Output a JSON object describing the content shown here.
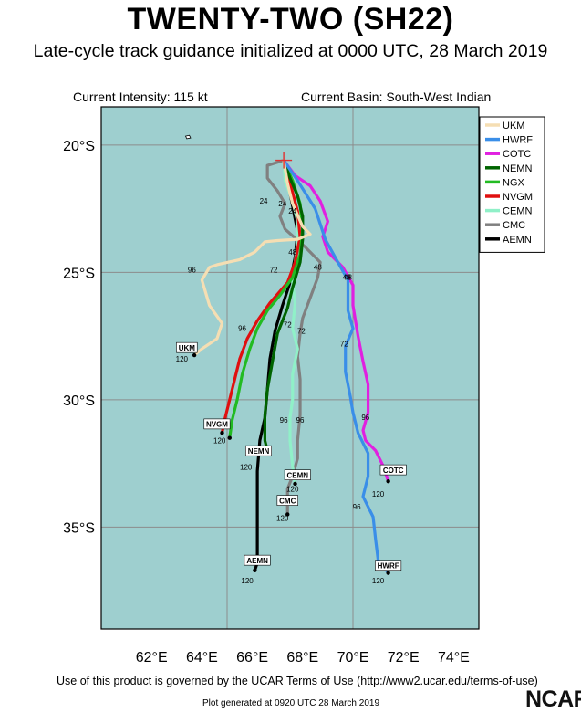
{
  "header": {
    "title": "TWENTY-TWO (SH22)",
    "subtitle": "Late-cycle track guidance initialized at 0000 UTC, 28 March 2019",
    "intensity": "Current Intensity: 115 kt",
    "basin": "Current Basin: South-West Indian"
  },
  "footer": {
    "terms": "Use of this product is governed by the UCAR Terms of Use (http://www2.ucar.edu/terms-of-use)",
    "generated": "Plot generated at 0920 UTC   28 March 2019",
    "logo_text": "NCAR"
  },
  "colors": {
    "ocean": "#9ecfcf",
    "land": "#ffffff",
    "grid": "#8c8c8c",
    "storm_marker": "#e03030"
  },
  "map": {
    "lon_range": [
      60,
      75
    ],
    "lat_range": [
      -39,
      -18.5
    ],
    "lon_ticks": [
      62,
      64,
      66,
      68,
      70,
      72,
      74
    ],
    "lon_tick_labels": [
      "62°E",
      "64°E",
      "66°E",
      "68°E",
      "70°E",
      "72°E",
      "74°E"
    ],
    "lat_ticks": [
      -20,
      -25,
      -30,
      -35
    ],
    "lat_tick_labels": [
      "20°S",
      "25°S",
      "30°S",
      "35°S"
    ],
    "grid_lons": [
      65,
      70
    ],
    "grid_lats": [
      -20,
      -25,
      -30,
      -35
    ],
    "storm_position": {
      "lon": 67.25,
      "lat": -20.6
    }
  },
  "legend": {
    "position": "top-right",
    "items": [
      {
        "name": "UKM",
        "color": "#f5deb3"
      },
      {
        "name": "HWRF",
        "color": "#3a8ee8"
      },
      {
        "name": "COTC",
        "color": "#e020e0"
      },
      {
        "name": "NEMN",
        "color": "#006400"
      },
      {
        "name": "NGX",
        "color": "#22bb22"
      },
      {
        "name": "NVGM",
        "color": "#e01010"
      },
      {
        "name": "CEMN",
        "color": "#90f0c8"
      },
      {
        "name": "CMC",
        "color": "#808080"
      },
      {
        "name": "AEMN",
        "color": "#000000"
      }
    ]
  },
  "tracks": [
    {
      "model": "UKM",
      "color": "#f5deb3",
      "end_label": "UKM",
      "points": [
        [
          67.25,
          -20.6
        ],
        [
          67.4,
          -21.5
        ],
        [
          67.6,
          -22.3
        ],
        [
          68.0,
          -23.2
        ],
        [
          68.3,
          -23.5
        ],
        [
          67.8,
          -23.7
        ],
        [
          67.0,
          -23.75
        ],
        [
          66.5,
          -23.8
        ],
        [
          66.1,
          -24.2
        ],
        [
          65.5,
          -24.5
        ],
        [
          64.6,
          -24.7
        ],
        [
          64.3,
          -24.8
        ],
        [
          64.0,
          -25.3
        ],
        [
          64.3,
          -26.3
        ],
        [
          64.8,
          -27.0
        ],
        [
          64.6,
          -27.6
        ],
        [
          64.0,
          -28.0
        ],
        [
          63.7,
          -28.25
        ]
      ],
      "hour_labels": [
        {
          "text": "96",
          "lon": 63.6,
          "lat": -25.0
        },
        {
          "text": "120",
          "lon": 63.2,
          "lat": -28.5
        }
      ],
      "box": {
        "lon": 63.4,
        "lat": -27.95
      }
    },
    {
      "model": "HWRF",
      "color": "#3a8ee8",
      "end_label": "HWRF",
      "points": [
        [
          67.25,
          -20.6
        ],
        [
          67.8,
          -21.4
        ],
        [
          68.5,
          -22.5
        ],
        [
          68.9,
          -23.7
        ],
        [
          69.4,
          -24.6
        ],
        [
          69.8,
          -25.3
        ],
        [
          69.8,
          -26.5
        ],
        [
          70.0,
          -27.2
        ],
        [
          69.7,
          -27.9
        ],
        [
          69.7,
          -28.9
        ],
        [
          69.9,
          -29.9
        ],
        [
          70.0,
          -30.5
        ],
        [
          70.2,
          -31.3
        ],
        [
          70.6,
          -32.1
        ],
        [
          70.6,
          -33.0
        ],
        [
          70.4,
          -33.8
        ],
        [
          70.8,
          -34.6
        ],
        [
          70.9,
          -35.5
        ],
        [
          71.0,
          -36.3
        ],
        [
          71.4,
          -36.8
        ]
      ],
      "hour_labels": [
        {
          "text": "48",
          "lon": 69.75,
          "lat": -25.3
        },
        {
          "text": "72",
          "lon": 69.65,
          "lat": -27.9
        },
        {
          "text": "96",
          "lon": 70.15,
          "lat": -34.3
        },
        {
          "text": "120",
          "lon": 71.0,
          "lat": -37.2
        }
      ],
      "box": {
        "lon": 71.4,
        "lat": -36.5
      }
    },
    {
      "model": "COTC",
      "color": "#e020e0",
      "end_label": "COTC",
      "points": [
        [
          67.25,
          -20.6
        ],
        [
          67.7,
          -21.2
        ],
        [
          68.3,
          -21.6
        ],
        [
          68.7,
          -22.2
        ],
        [
          69.0,
          -23.0
        ],
        [
          68.8,
          -23.6
        ],
        [
          69.0,
          -24.2
        ],
        [
          69.6,
          -24.8
        ],
        [
          70.0,
          -25.5
        ],
        [
          70.0,
          -26.3
        ],
        [
          70.2,
          -27.5
        ],
        [
          70.4,
          -28.5
        ],
        [
          70.6,
          -29.4
        ],
        [
          70.6,
          -30.5
        ],
        [
          70.4,
          -31.2
        ],
        [
          70.5,
          -31.6
        ],
        [
          70.9,
          -32.0
        ],
        [
          71.2,
          -32.6
        ],
        [
          71.4,
          -33.2
        ]
      ],
      "hour_labels": [
        {
          "text": "48",
          "lon": 69.8,
          "lat": -25.3
        },
        {
          "text": "96",
          "lon": 70.5,
          "lat": -30.8
        },
        {
          "text": "120",
          "lon": 71.0,
          "lat": -33.8
        }
      ],
      "box": {
        "lon": 71.6,
        "lat": -32.75
      }
    },
    {
      "model": "NEMN",
      "color": "#006400",
      "end_label": "NEMN",
      "points": [
        [
          67.25,
          -20.6
        ],
        [
          67.5,
          -21.3
        ],
        [
          67.8,
          -22.0
        ],
        [
          68.0,
          -22.8
        ],
        [
          68.0,
          -23.7
        ],
        [
          67.9,
          -24.6
        ],
        [
          67.6,
          -25.6
        ],
        [
          67.4,
          -26.4
        ],
        [
          67.0,
          -27.4
        ],
        [
          66.8,
          -28.5
        ],
        [
          66.6,
          -29.6
        ],
        [
          66.5,
          -30.6
        ],
        [
          66.5,
          -31.6
        ],
        [
          66.6,
          -32.0
        ]
      ],
      "hour_labels": [
        {
          "text": "48",
          "lon": 67.6,
          "lat": -24.3
        },
        {
          "text": "72",
          "lon": 67.4,
          "lat": -27.15
        },
        {
          "text": "120",
          "lon": 65.75,
          "lat": -32.75
        }
      ],
      "box": {
        "lon": 66.25,
        "lat": -32.0
      }
    },
    {
      "model": "NGX",
      "color": "#22bb22",
      "end_label": "",
      "points": [
        [
          67.25,
          -20.6
        ],
        [
          67.6,
          -21.4
        ],
        [
          67.9,
          -22.3
        ],
        [
          68.0,
          -23.3
        ],
        [
          67.9,
          -24.3
        ],
        [
          67.6,
          -25.2
        ],
        [
          67.1,
          -25.9
        ],
        [
          66.6,
          -26.5
        ],
        [
          66.2,
          -27.2
        ],
        [
          65.9,
          -28.0
        ],
        [
          65.6,
          -29.0
        ],
        [
          65.4,
          -30.0
        ],
        [
          65.2,
          -30.8
        ],
        [
          65.1,
          -31.5
        ]
      ],
      "hour_labels": [
        {
          "text": "24",
          "lon": 67.6,
          "lat": -22.7
        }
      ],
      "box": null
    },
    {
      "model": "NVGM",
      "color": "#e01010",
      "end_label": "NVGM",
      "points": [
        [
          67.25,
          -20.6
        ],
        [
          67.5,
          -21.5
        ],
        [
          67.8,
          -22.6
        ],
        [
          67.9,
          -23.6
        ],
        [
          67.7,
          -24.6
        ],
        [
          67.4,
          -25.4
        ],
        [
          66.7,
          -26.2
        ],
        [
          66.2,
          -26.9
        ],
        [
          65.8,
          -27.6
        ],
        [
          65.5,
          -28.4
        ],
        [
          65.3,
          -29.2
        ],
        [
          65.1,
          -30.0
        ],
        [
          64.9,
          -30.8
        ],
        [
          64.8,
          -31.3
        ]
      ],
      "hour_labels": [
        {
          "text": "96",
          "lon": 65.6,
          "lat": -27.3
        },
        {
          "text": "120",
          "lon": 64.7,
          "lat": -31.7
        }
      ],
      "box": {
        "lon": 64.6,
        "lat": -30.95
      }
    },
    {
      "model": "CEMN",
      "color": "#90f0c8",
      "end_label": "CEMN",
      "points": [
        [
          67.25,
          -20.6
        ],
        [
          67.3,
          -21.4
        ],
        [
          67.6,
          -22.2
        ],
        [
          67.8,
          -23.0
        ],
        [
          67.8,
          -23.8
        ],
        [
          67.7,
          -24.6
        ],
        [
          67.6,
          -25.4
        ],
        [
          67.7,
          -26.2
        ],
        [
          67.6,
          -27.2
        ],
        [
          67.8,
          -28.0
        ],
        [
          67.6,
          -29.0
        ],
        [
          67.6,
          -30.0
        ],
        [
          67.5,
          -30.7
        ],
        [
          67.5,
          -31.6
        ],
        [
          67.6,
          -32.6
        ],
        [
          67.7,
          -33.3
        ]
      ],
      "hour_labels": [
        {
          "text": "96",
          "lon": 67.25,
          "lat": -30.9
        },
        {
          "text": "120",
          "lon": 67.6,
          "lat": -33.6
        }
      ],
      "box": {
        "lon": 67.8,
        "lat": -32.95
      }
    },
    {
      "model": "CMC",
      "color": "#808080",
      "end_label": "CMC",
      "points": [
        [
          67.25,
          -20.6
        ],
        [
          66.6,
          -20.8
        ],
        [
          66.6,
          -21.3
        ],
        [
          67.0,
          -21.8
        ],
        [
          67.3,
          -22.3
        ],
        [
          67.1,
          -22.8
        ],
        [
          67.3,
          -23.3
        ],
        [
          68.1,
          -24.0
        ],
        [
          68.7,
          -24.6
        ],
        [
          68.6,
          -25.2
        ],
        [
          68.3,
          -26.0
        ],
        [
          68.0,
          -26.8
        ],
        [
          67.9,
          -27.4
        ],
        [
          67.8,
          -28.3
        ],
        [
          67.9,
          -29.2
        ],
        [
          67.9,
          -30.6
        ],
        [
          67.8,
          -31.6
        ],
        [
          67.8,
          -32.3
        ],
        [
          67.6,
          -33.0
        ],
        [
          67.4,
          -33.5
        ],
        [
          67.4,
          -34.5
        ]
      ],
      "hour_labels": [
        {
          "text": "24",
          "lon": 66.45,
          "lat": -22.3
        },
        {
          "text": "48",
          "lon": 68.6,
          "lat": -24.9
        },
        {
          "text": "72",
          "lon": 67.95,
          "lat": -27.4
        },
        {
          "text": "96",
          "lon": 67.9,
          "lat": -30.9
        },
        {
          "text": "120",
          "lon": 67.2,
          "lat": -34.75
        }
      ],
      "box": {
        "lon": 67.4,
        "lat": -33.95
      }
    },
    {
      "model": "AEMN",
      "color": "#000000",
      "end_label": "AEMN",
      "points": [
        [
          67.25,
          -20.6
        ],
        [
          67.4,
          -21.4
        ],
        [
          67.6,
          -22.4
        ],
        [
          67.8,
          -23.4
        ],
        [
          67.7,
          -24.4
        ],
        [
          67.5,
          -25.4
        ],
        [
          67.2,
          -26.3
        ],
        [
          66.9,
          -27.3
        ],
        [
          66.7,
          -28.4
        ],
        [
          66.6,
          -29.6
        ],
        [
          66.5,
          -30.7
        ],
        [
          66.3,
          -31.6
        ],
        [
          66.2,
          -32.8
        ],
        [
          66.2,
          -34.0
        ],
        [
          66.2,
          -35.2
        ],
        [
          66.2,
          -36.4
        ],
        [
          66.1,
          -36.7
        ]
      ],
      "hour_labels": [
        {
          "text": "24",
          "lon": 67.2,
          "lat": -22.4
        },
        {
          "text": "72",
          "lon": 66.85,
          "lat": -25.0
        },
        {
          "text": "120",
          "lon": 65.8,
          "lat": -37.2
        }
      ],
      "box": {
        "lon": 66.2,
        "lat": -36.3
      }
    }
  ],
  "islands": [
    {
      "name": "rodrigues",
      "points": [
        [
          63.35,
          -19.65
        ],
        [
          63.5,
          -19.62
        ],
        [
          63.55,
          -19.72
        ],
        [
          63.4,
          -19.75
        ]
      ]
    }
  ]
}
